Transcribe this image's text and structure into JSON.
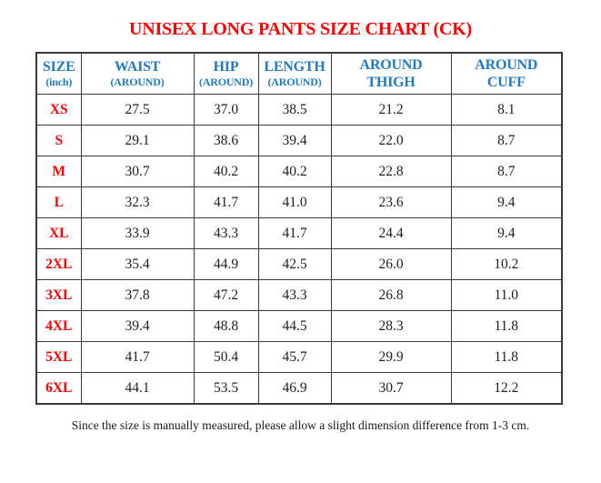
{
  "title": "UNISEX LONG PANTS SIZE CHART (CK)",
  "note": "Since the size is manually measured, please allow a slight dimension difference from 1-3 cm.",
  "colors": {
    "title_red": "#ff0000",
    "size_label_red": "#ff0000",
    "header_blue": "#1f7bc4",
    "value_ink": "#1f1f1f",
    "table_border": "#3a3a3a"
  },
  "table": {
    "columns": [
      {
        "key": "size",
        "line1": "SIZE",
        "line2": "(inch)",
        "line2_small": true
      },
      {
        "key": "waist",
        "line1": "WAIST",
        "line2": "(AROUND)",
        "line2_small": true
      },
      {
        "key": "hip",
        "line1": "HIP",
        "line2": "(AROUND)",
        "line2_small": true
      },
      {
        "key": "length",
        "line1": "LENGTH",
        "line2": "(AROUND)",
        "line2_small": true
      },
      {
        "key": "around-thigh",
        "line1": "AROUND",
        "line2": "THIGH",
        "line2_small": false
      },
      {
        "key": "around-cuff",
        "line1": "AROUND",
        "line2": "CUFF",
        "line2_small": false
      }
    ],
    "rows": [
      {
        "size": "XS",
        "values": [
          "27.5",
          "37.0",
          "38.5",
          "21.2",
          "8.1"
        ]
      },
      {
        "size": "S",
        "values": [
          "29.1",
          "38.6",
          "39.4",
          "22.0",
          "8.7"
        ]
      },
      {
        "size": "M",
        "values": [
          "30.7",
          "40.2",
          "40.2",
          "22.8",
          "8.7"
        ]
      },
      {
        "size": "L",
        "values": [
          "32.3",
          "41.7",
          "41.0",
          "23.6",
          "9.4"
        ]
      },
      {
        "size": "XL",
        "values": [
          "33.9",
          "43.3",
          "41.7",
          "24.4",
          "9.4"
        ]
      },
      {
        "size": "2XL",
        "values": [
          "35.4",
          "44.9",
          "42.5",
          "26.0",
          "10.2"
        ]
      },
      {
        "size": "3XL",
        "values": [
          "37.8",
          "47.2",
          "43.3",
          "26.8",
          "11.0"
        ]
      },
      {
        "size": "4XL",
        "values": [
          "39.4",
          "48.8",
          "44.5",
          "28.3",
          "11.8"
        ]
      },
      {
        "size": "5XL",
        "values": [
          "41.7",
          "50.4",
          "45.7",
          "29.9",
          "11.8"
        ]
      },
      {
        "size": "6XL",
        "values": [
          "44.1",
          "53.5",
          "46.9",
          "30.7",
          "12.2"
        ]
      }
    ]
  }
}
